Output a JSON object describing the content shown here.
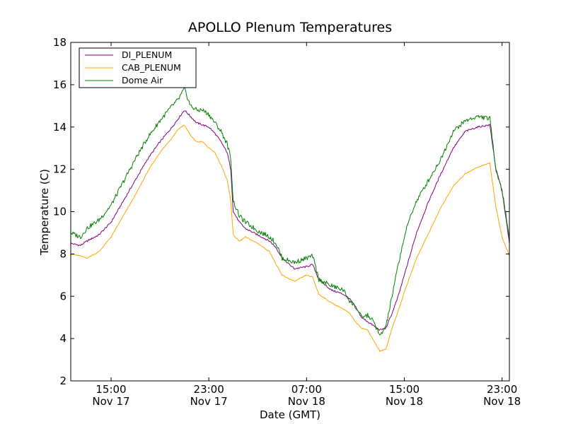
{
  "chart_data": {
    "type": "line",
    "title": "APOLLO Plenum Temperatures",
    "xlabel": "Date (GMT)",
    "ylabel": "Temperature (C)",
    "xlim_hours": [
      11.7,
      47.6
    ],
    "ylim": [
      2,
      18
    ],
    "y_ticks": [
      2,
      4,
      6,
      8,
      10,
      12,
      14,
      16,
      18
    ],
    "x_ticks": [
      {
        "hour": 15,
        "time": "15:00",
        "date": "Nov 17"
      },
      {
        "hour": 23,
        "time": "23:00",
        "date": "Nov 17"
      },
      {
        "hour": 31,
        "time": "07:00",
        "date": "Nov 18"
      },
      {
        "hour": 39,
        "time": "15:00",
        "date": "Nov 18"
      },
      {
        "hour": 47,
        "time": "23:00",
        "date": "Nov 18"
      }
    ],
    "legend_position": "top-left",
    "series": [
      {
        "name": "DI_PLENUM",
        "color": "#800080",
        "x": [
          11.7,
          12.5,
          13.0,
          14.0,
          15.0,
          16.0,
          17.0,
          18.0,
          19.0,
          20.0,
          20.5,
          21.0,
          21.5,
          22.0,
          22.5,
          23.0,
          23.5,
          24.0,
          24.5,
          24.8,
          25.0,
          25.5,
          26.0,
          27.0,
          28.0,
          28.5,
          29.0,
          30.0,
          31.0,
          31.5,
          32.0,
          33.0,
          34.0,
          34.5,
          35.0,
          35.5,
          36.0,
          36.5,
          37.0,
          37.5,
          38.0,
          38.5,
          39.0,
          39.5,
          40.0,
          41.0,
          42.0,
          43.0,
          44.0,
          45.0,
          46.0,
          46.5,
          47.0,
          47.6
        ],
        "y": [
          8.5,
          8.4,
          8.6,
          8.9,
          9.5,
          10.5,
          11.5,
          12.5,
          13.3,
          14.0,
          14.4,
          14.8,
          14.5,
          14.2,
          14.1,
          14.0,
          13.7,
          13.3,
          12.8,
          12.0,
          10.0,
          9.5,
          9.2,
          8.9,
          8.6,
          8.3,
          7.8,
          7.3,
          7.4,
          7.5,
          6.8,
          6.3,
          6.1,
          5.9,
          5.5,
          5.0,
          4.8,
          4.6,
          4.4,
          4.5,
          5.2,
          6.0,
          7.0,
          8.0,
          9.0,
          10.5,
          11.8,
          13.0,
          13.8,
          14.0,
          14.1,
          12.0,
          11.0,
          8.5
        ]
      },
      {
        "name": "CAB_PLENUM",
        "color": "#ffa500",
        "x": [
          11.7,
          12.5,
          13.0,
          14.0,
          15.0,
          16.0,
          17.0,
          18.0,
          19.0,
          20.0,
          20.5,
          21.0,
          21.5,
          22.0,
          22.5,
          23.0,
          23.5,
          24.0,
          24.5,
          24.8,
          25.0,
          25.5,
          26.0,
          27.0,
          28.0,
          28.5,
          29.0,
          30.0,
          31.0,
          31.5,
          32.0,
          33.0,
          34.0,
          34.5,
          35.0,
          35.5,
          36.0,
          36.5,
          37.0,
          37.5,
          38.0,
          38.5,
          39.0,
          39.5,
          40.0,
          41.0,
          42.0,
          43.0,
          44.0,
          45.0,
          46.0,
          46.5,
          47.0,
          47.6
        ],
        "y": [
          8.0,
          7.9,
          7.8,
          8.1,
          8.8,
          9.8,
          10.8,
          11.9,
          12.8,
          13.5,
          13.9,
          14.1,
          13.6,
          13.3,
          13.3,
          13.0,
          12.8,
          12.2,
          11.5,
          10.5,
          8.9,
          8.6,
          8.8,
          8.5,
          8.1,
          7.5,
          7.0,
          6.7,
          7.0,
          6.9,
          6.1,
          5.7,
          5.4,
          5.2,
          4.8,
          4.5,
          4.4,
          3.9,
          3.4,
          3.5,
          4.5,
          5.3,
          6.2,
          7.0,
          7.8,
          9.0,
          10.2,
          11.2,
          11.8,
          12.1,
          12.3,
          10.2,
          8.8,
          7.9
        ]
      },
      {
        "name": "Dome Air",
        "color": "#008000",
        "x": [
          11.7,
          12.5,
          13.0,
          14.0,
          15.0,
          16.0,
          17.0,
          18.0,
          19.0,
          20.0,
          20.5,
          21.0,
          21.5,
          22.0,
          22.5,
          23.0,
          23.5,
          24.0,
          24.5,
          24.8,
          25.0,
          25.5,
          26.0,
          27.0,
          28.0,
          28.5,
          29.0,
          30.0,
          31.0,
          31.5,
          32.0,
          33.0,
          34.0,
          34.5,
          35.0,
          35.5,
          36.0,
          36.5,
          37.0,
          37.5,
          38.0,
          38.5,
          39.0,
          39.5,
          40.0,
          41.0,
          42.0,
          43.0,
          44.0,
          45.0,
          46.0,
          46.5,
          47.0,
          47.6
        ],
        "y": [
          9.0,
          8.8,
          9.2,
          9.6,
          10.3,
          11.4,
          12.5,
          13.5,
          14.3,
          15.0,
          15.3,
          15.8,
          15.0,
          14.8,
          14.8,
          14.6,
          14.2,
          13.8,
          13.2,
          12.5,
          10.5,
          9.8,
          9.5,
          9.1,
          8.8,
          8.5,
          7.8,
          7.6,
          7.8,
          7.9,
          6.8,
          6.5,
          6.3,
          5.8,
          5.5,
          5.0,
          5.1,
          4.8,
          4.1,
          4.6,
          6.0,
          7.5,
          8.8,
          9.8,
          10.5,
          11.5,
          12.5,
          13.8,
          14.3,
          14.5,
          14.4,
          12.0,
          11.0,
          8.8
        ]
      }
    ]
  }
}
